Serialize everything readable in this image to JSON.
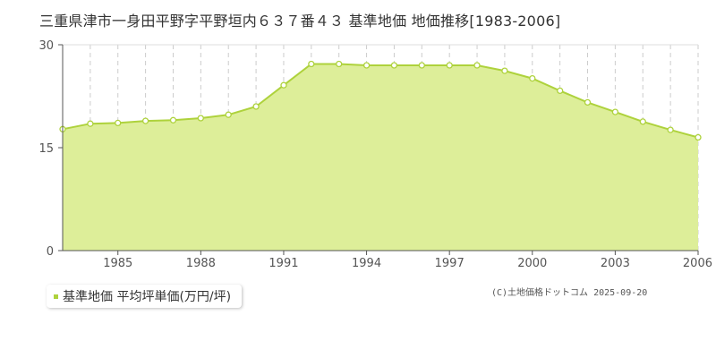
{
  "title": "三重県津市一身田平野字平野垣内６３７番４３ 基準地価 地価推移[1983-2006]",
  "legend": {
    "label": "基準地価 平均坪単価(万円/坪)"
  },
  "copyright": "(C)土地価格ドットコム 2025-09-20",
  "colors": {
    "fill": "#ddee99",
    "line": "#aed23c",
    "marker_stroke": "#aed23c",
    "marker_fill": "#ffffff",
    "grid_vertical": "#cccccc",
    "grid_mid": "#b0c070",
    "axis": "#555555"
  },
  "chart_data": {
    "type": "area",
    "title": "",
    "xlabel": "",
    "ylabel": "",
    "x": [
      1983,
      1984,
      1985,
      1986,
      1987,
      1988,
      1989,
      1990,
      1991,
      1992,
      1993,
      1994,
      1995,
      1996,
      1997,
      1998,
      1999,
      2000,
      2001,
      2002,
      2003,
      2004,
      2005,
      2006
    ],
    "values": [
      17.7,
      18.5,
      18.6,
      18.9,
      19.0,
      19.3,
      19.8,
      21.0,
      24.1,
      27.2,
      27.2,
      27.0,
      27.0,
      27.0,
      27.0,
      27.0,
      26.2,
      25.1,
      23.3,
      21.6,
      20.2,
      18.8,
      17.6,
      16.5
    ],
    "xticks": [
      "1985",
      "1988",
      "1991",
      "1994",
      "1997",
      "2000",
      "2003",
      "2006"
    ],
    "yticks": [
      "0",
      "15",
      "30"
    ],
    "ylim": [
      0,
      30
    ],
    "xlim": [
      1983,
      2006
    ],
    "grid": true
  }
}
